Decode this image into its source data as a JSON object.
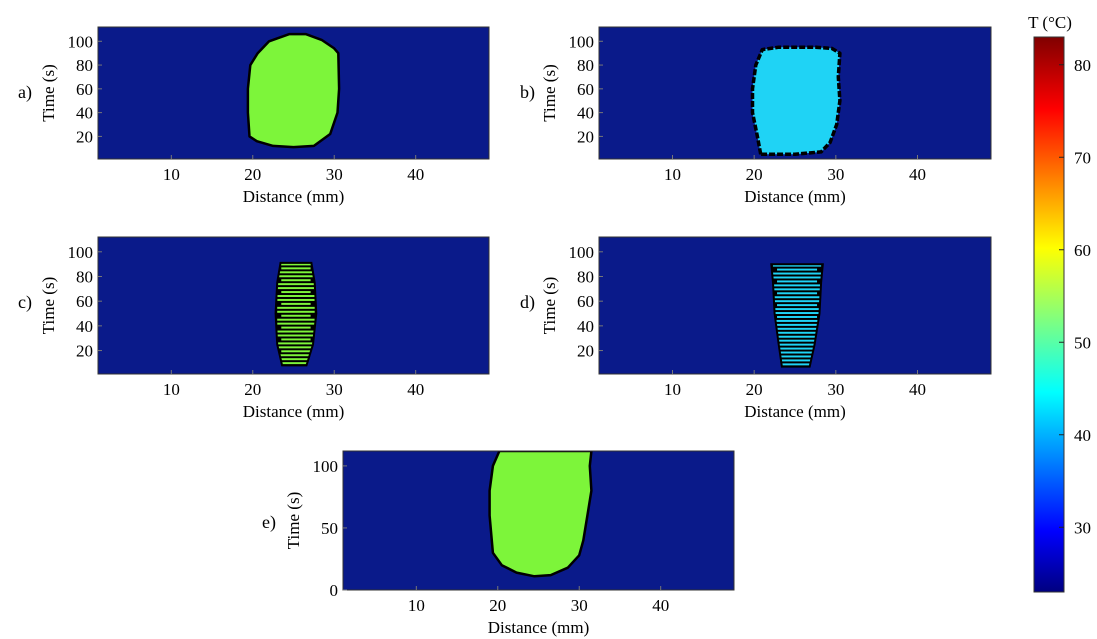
{
  "colors": {
    "background": "#0a1a8a",
    "frame": "#333333",
    "contour": "#000000"
  },
  "colorbar": {
    "title": "T (°C)",
    "range": [
      23,
      83
    ],
    "ticks": [
      "30",
      "40",
      "50",
      "60",
      "70",
      "80"
    ],
    "tick_values": [
      30,
      40,
      50,
      60,
      70,
      80
    ],
    "colormap": "jet"
  },
  "chart_data": [
    {
      "type": "heatmap",
      "panel_label": "a)",
      "xlabel": "Distance (mm)",
      "ylabel": "Time (s)",
      "xlim": [
        1,
        49
      ],
      "ylim": [
        1,
        112
      ],
      "xticks": [
        "10",
        "20",
        "30",
        "40"
      ],
      "xtick_values": [
        10,
        20,
        30,
        40
      ],
      "yticks": [
        "20",
        "40",
        "60",
        "80",
        "100"
      ],
      "ytick_values": [
        20,
        40,
        60,
        80,
        100
      ],
      "background_temperature": 23,
      "region_temperature": 52,
      "region_color": "#7df53a",
      "region_style": "smooth",
      "region_outline": [
        [
          19.6,
          20
        ],
        [
          19.4,
          40
        ],
        [
          19.4,
          60
        ],
        [
          19.7,
          80
        ],
        [
          20.6,
          90
        ],
        [
          22,
          100
        ],
        [
          24.5,
          106
        ],
        [
          26.5,
          106
        ],
        [
          28.5,
          101
        ],
        [
          30,
          94
        ],
        [
          30.5,
          90
        ],
        [
          30.6,
          60
        ],
        [
          30.4,
          40
        ],
        [
          29.5,
          22
        ],
        [
          27.5,
          12
        ],
        [
          25,
          11
        ],
        [
          22.5,
          12
        ],
        [
          20.5,
          16
        ]
      ]
    },
    {
      "type": "heatmap",
      "panel_label": "b)",
      "xlabel": "Distance (mm)",
      "ylabel": "Time (s)",
      "xlim": [
        1,
        49
      ],
      "ylim": [
        1,
        112
      ],
      "xticks": [
        "10",
        "20",
        "30",
        "40"
      ],
      "xtick_values": [
        10,
        20,
        30,
        40
      ],
      "yticks": [
        "20",
        "40",
        "60",
        "80",
        "100"
      ],
      "ytick_values": [
        20,
        40,
        60,
        80,
        100
      ],
      "background_temperature": 23,
      "region_temperature": 45,
      "region_color": "#1fd3f5",
      "region_style": "jagged",
      "region_outline": [
        [
          20.8,
          5
        ],
        [
          20.4,
          20
        ],
        [
          19.8,
          40
        ],
        [
          19.8,
          60
        ],
        [
          20.2,
          80
        ],
        [
          21,
          93
        ],
        [
          23,
          95
        ],
        [
          27.5,
          95
        ],
        [
          29.5,
          94
        ],
        [
          30.5,
          90
        ],
        [
          30.3,
          70
        ],
        [
          30.5,
          50
        ],
        [
          30.1,
          30
        ],
        [
          29.3,
          15
        ],
        [
          28.2,
          7
        ],
        [
          25,
          5
        ],
        [
          22,
          5
        ]
      ]
    },
    {
      "type": "heatmap",
      "panel_label": "c)",
      "xlabel": "Distance (mm)",
      "ylabel": "Time (s)",
      "xlim": [
        1,
        49
      ],
      "ylim": [
        1,
        112
      ],
      "xticks": [
        "10",
        "20",
        "30",
        "40"
      ],
      "xtick_values": [
        10,
        20,
        30,
        40
      ],
      "yticks": [
        "20",
        "40",
        "60",
        "80",
        "100"
      ],
      "ytick_values": [
        20,
        40,
        60,
        80,
        100
      ],
      "background_temperature": 23,
      "region_temperature": 52,
      "region_color": "#7df53a",
      "region_style": "banded",
      "region_outline": [
        [
          23.6,
          8
        ],
        [
          23,
          25
        ],
        [
          22.8,
          50
        ],
        [
          23,
          75
        ],
        [
          23.4,
          91
        ],
        [
          27.2,
          91
        ],
        [
          27.6,
          75
        ],
        [
          27.8,
          50
        ],
        [
          27.4,
          25
        ],
        [
          26.6,
          8
        ]
      ]
    },
    {
      "type": "heatmap",
      "panel_label": "d)",
      "xlabel": "Distance (mm)",
      "ylabel": "Time (s)",
      "xlim": [
        1,
        49
      ],
      "ylim": [
        1,
        112
      ],
      "xticks": [
        "10",
        "20",
        "30",
        "40"
      ],
      "xtick_values": [
        10,
        20,
        30,
        40
      ],
      "yticks": [
        "20",
        "40",
        "60",
        "80",
        "100"
      ],
      "ytick_values": [
        20,
        40,
        60,
        80,
        100
      ],
      "background_temperature": 23,
      "region_temperature": 45,
      "region_color": "#1fd3f5",
      "region_style": "banded",
      "region_outline": [
        [
          23.4,
          7
        ],
        [
          23,
          25
        ],
        [
          22.5,
          50
        ],
        [
          22.3,
          75
        ],
        [
          22.1,
          90
        ],
        [
          28.4,
          90
        ],
        [
          28.2,
          75
        ],
        [
          28,
          50
        ],
        [
          27.4,
          25
        ],
        [
          26.8,
          7
        ]
      ]
    },
    {
      "type": "heatmap",
      "panel_label": "e)",
      "xlabel": "Distance (mm)",
      "ylabel": "Time (s)",
      "xlim": [
        1,
        49
      ],
      "ylim": [
        0,
        112
      ],
      "xticks": [
        "10",
        "20",
        "30",
        "40"
      ],
      "xtick_values": [
        10,
        20,
        30,
        40
      ],
      "yticks": [
        "0",
        "50",
        "100"
      ],
      "ytick_values": [
        0,
        50,
        100
      ],
      "background_temperature": 23,
      "region_temperature": 52,
      "region_color": "#7df53a",
      "region_style": "smooth",
      "region_outline": [
        [
          19.4,
          30
        ],
        [
          19,
          60
        ],
        [
          19,
          80
        ],
        [
          19.4,
          100
        ],
        [
          20.2,
          112
        ],
        [
          31.5,
          112
        ],
        [
          31.3,
          100
        ],
        [
          31.5,
          80
        ],
        [
          31,
          60
        ],
        [
          30.5,
          40
        ],
        [
          30,
          28
        ],
        [
          28.6,
          18
        ],
        [
          26.5,
          12
        ],
        [
          24.5,
          11
        ],
        [
          22.3,
          14
        ],
        [
          20.5,
          20
        ]
      ]
    }
  ]
}
